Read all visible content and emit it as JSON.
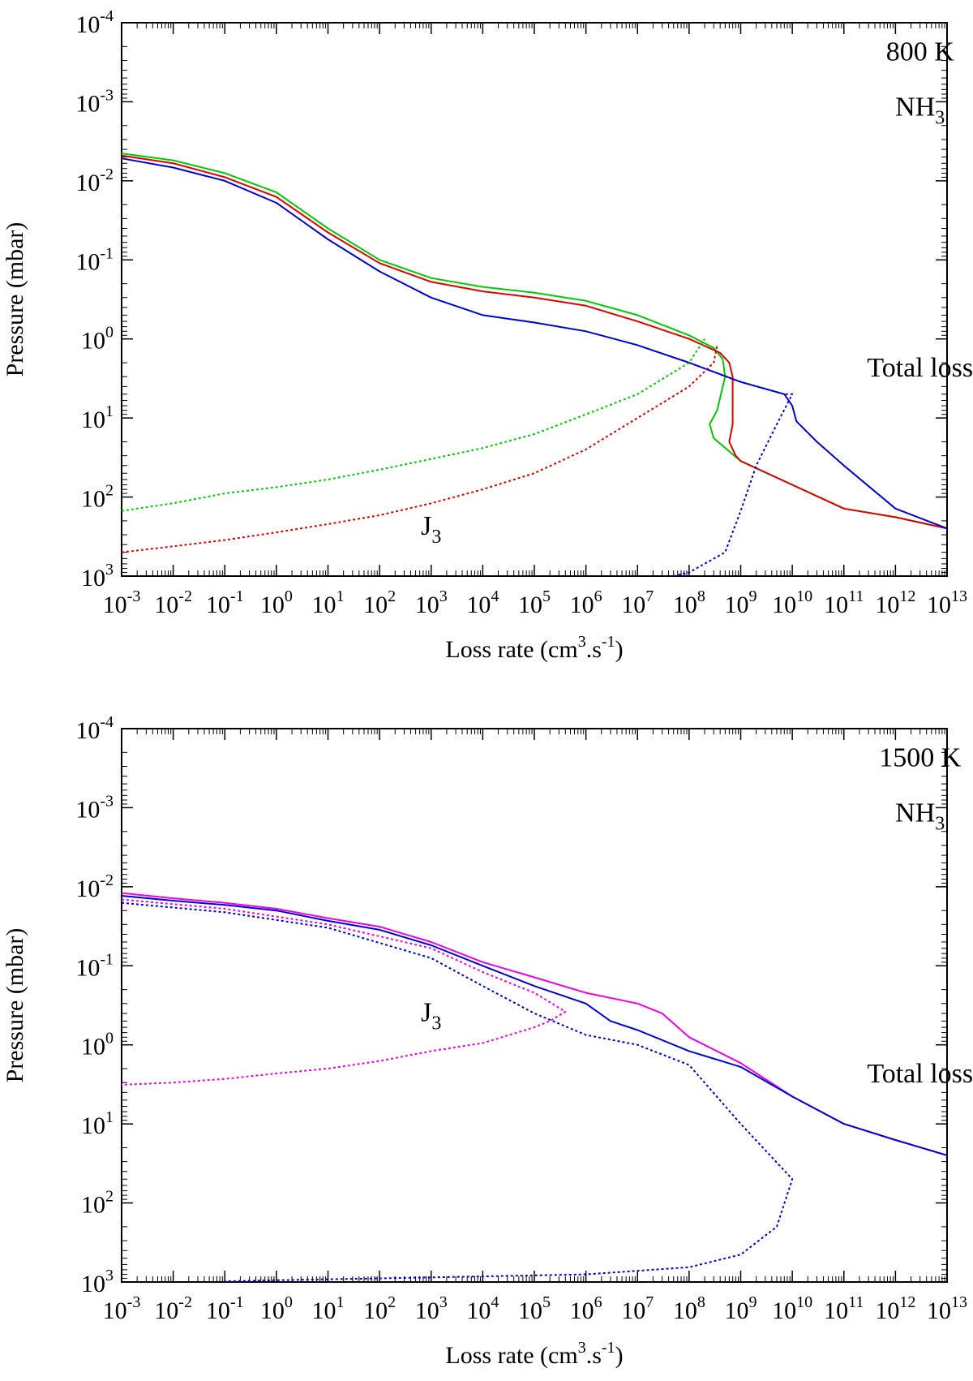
{
  "chart_data": [
    {
      "type": "line",
      "xscale": "log",
      "yscale": "log",
      "yaxis_inverted": true,
      "xlabel": "Loss rate (cm3.s-1)",
      "ylabel": "Pressure (mbar)",
      "xlim": [
        0.001,
        10000000000000.0
      ],
      "ylim": [
        0.0001,
        1000
      ],
      "x_tick_labels": [
        {
          "base": "10",
          "exp": "-3"
        },
        {
          "base": "10",
          "exp": "-2"
        },
        {
          "base": "10",
          "exp": "-1"
        },
        {
          "base": "10",
          "exp": "0"
        },
        {
          "base": "10",
          "exp": "1"
        },
        {
          "base": "10",
          "exp": "2"
        },
        {
          "base": "10",
          "exp": "3"
        },
        {
          "base": "10",
          "exp": "4"
        },
        {
          "base": "10",
          "exp": "5"
        },
        {
          "base": "10",
          "exp": "6"
        },
        {
          "base": "10",
          "exp": "7"
        },
        {
          "base": "10",
          "exp": "8"
        },
        {
          "base": "10",
          "exp": "9"
        },
        {
          "base": "10",
          "exp": "10"
        },
        {
          "base": "10",
          "exp": "11"
        },
        {
          "base": "10",
          "exp": "12"
        },
        {
          "base": "10",
          "exp": "13"
        }
      ],
      "y_tick_labels": [
        {
          "base": "10",
          "exp": "-4"
        },
        {
          "base": "10",
          "exp": "-3"
        },
        {
          "base": "10",
          "exp": "-2"
        },
        {
          "base": "10",
          "exp": "-1"
        },
        {
          "base": "10",
          "exp": "0"
        },
        {
          "base": "10",
          "exp": "1"
        },
        {
          "base": "10",
          "exp": "2"
        },
        {
          "base": "10",
          "exp": "3"
        }
      ],
      "annotations": [
        {
          "text": "800 K",
          "x": 3000000000000.0,
          "y": 0.0003
        },
        {
          "text": "NH",
          "sub": "3",
          "x": 3000000000000.0,
          "y": 0.0015
        },
        {
          "text": "Total loss",
          "x": 3000000000000.0,
          "y": 3
        },
        {
          "text": "J",
          "sub": "3",
          "x": 1000.0,
          "y": 300
        }
      ],
      "series": [
        {
          "color": "#00cc00",
          "style": "solid",
          "points": [
            [
              0.001,
              0.0045
            ],
            [
              0.01,
              0.0055
            ],
            [
              0.1,
              0.008
            ],
            [
              1,
              0.014
            ],
            [
              10,
              0.04
            ],
            [
              100,
              0.1
            ],
            [
              1000,
              0.17
            ],
            [
              10000,
              0.22
            ],
            [
              100000,
              0.26
            ],
            [
              1000000.0,
              0.33
            ],
            [
              10000000.0,
              0.5
            ],
            [
              100000000.0,
              0.9
            ],
            [
              300000000.0,
              1.3
            ],
            [
              450000000.0,
              1.8
            ],
            [
              500000000.0,
              3
            ],
            [
              350000000.0,
              8
            ],
            [
              250000000.0,
              12
            ],
            [
              300000000.0,
              18
            ],
            [
              1000000000.0,
              35
            ],
            [
              10000000000.0,
              70
            ],
            [
              100000000000.0,
              140
            ],
            [
              1000000000000.0,
              180
            ],
            [
              10000000000000.0,
              250
            ]
          ]
        },
        {
          "color": "#e00000",
          "style": "solid",
          "points": [
            [
              0.001,
              0.0048
            ],
            [
              0.01,
              0.006
            ],
            [
              0.1,
              0.009
            ],
            [
              1,
              0.016
            ],
            [
              10,
              0.045
            ],
            [
              100,
              0.11
            ],
            [
              1000,
              0.19
            ],
            [
              10000,
              0.25
            ],
            [
              100000,
              0.3
            ],
            [
              1000000.0,
              0.38
            ],
            [
              10000000.0,
              0.6
            ],
            [
              100000000.0,
              1
            ],
            [
              400000000.0,
              1.5
            ],
            [
              600000000.0,
              2
            ],
            [
              700000000.0,
              3
            ],
            [
              700000000.0,
              12
            ],
            [
              600000000.0,
              20
            ],
            [
              800000000.0,
              30
            ],
            [
              1000000000.0,
              35
            ],
            [
              10000000000.0,
              70
            ],
            [
              100000000000.0,
              140
            ],
            [
              1000000000000.0,
              180
            ],
            [
              10000000000000.0,
              250
            ]
          ]
        },
        {
          "color": "#0000dd",
          "style": "solid",
          "points": [
            [
              0.001,
              0.0052
            ],
            [
              0.01,
              0.0068
            ],
            [
              0.1,
              0.01
            ],
            [
              1,
              0.019
            ],
            [
              10,
              0.055
            ],
            [
              100,
              0.14
            ],
            [
              1000,
              0.3
            ],
            [
              10000,
              0.5
            ],
            [
              100000,
              0.62
            ],
            [
              1000000.0,
              0.8
            ],
            [
              10000000.0,
              1.2
            ],
            [
              100000000.0,
              2
            ],
            [
              1000000000.0,
              3.5
            ],
            [
              7000000000.0,
              5
            ],
            [
              10000000000.0,
              7
            ],
            [
              12000000000.0,
              11
            ],
            [
              30000000000.0,
              20
            ],
            [
              100000000000.0,
              40
            ],
            [
              1000000000000.0,
              140
            ],
            [
              10000000000000.0,
              250
            ]
          ]
        },
        {
          "color": "#00cc00",
          "style": "dotted",
          "points": [
            [
              0.001,
              150
            ],
            [
              0.01,
              120
            ],
            [
              0.1,
              90
            ],
            [
              1,
              75
            ],
            [
              10,
              60
            ],
            [
              100,
              45
            ],
            [
              1000,
              33
            ],
            [
              10000,
              24
            ],
            [
              100000,
              16
            ],
            [
              1000000.0,
              9
            ],
            [
              10000000.0,
              5
            ],
            [
              100000000.0,
              2
            ],
            [
              200000000.0,
              1
            ]
          ]
        },
        {
          "color": "#e00000",
          "style": "dotted",
          "points": [
            [
              0.001,
              500
            ],
            [
              0.01,
              420
            ],
            [
              0.1,
              350
            ],
            [
              1,
              280
            ],
            [
              10,
              220
            ],
            [
              100,
              170
            ],
            [
              1000,
              120
            ],
            [
              10000,
              80
            ],
            [
              100000,
              50
            ],
            [
              1000000.0,
              25
            ],
            [
              10000000.0,
              10
            ],
            [
              100000000.0,
              4
            ],
            [
              300000000.0,
              2
            ],
            [
              350000000.0,
              1.2
            ]
          ]
        },
        {
          "color": "#0000dd",
          "style": "dotted",
          "points": [
            [
              50000000.0,
              1000
            ],
            [
              100000000.0,
              900
            ],
            [
              500000000.0,
              500
            ],
            [
              1000000000.0,
              150
            ],
            [
              2000000000.0,
              40
            ],
            [
              5000000000.0,
              12
            ],
            [
              10000000000.0,
              5
            ],
            [
              7000000000.0,
              5
            ],
            [
              1000000000.0,
              3.5
            ],
            [
              100000000.0,
              2
            ]
          ]
        }
      ]
    },
    {
      "type": "line",
      "xscale": "log",
      "yscale": "log",
      "yaxis_inverted": true,
      "xlabel": "Loss rate (cm3.s-1)",
      "ylabel": "Pressure (mbar)",
      "xlim": [
        0.001,
        10000000000000.0
      ],
      "ylim": [
        0.0001,
        1000
      ],
      "x_tick_labels": [
        {
          "base": "10",
          "exp": "-3"
        },
        {
          "base": "10",
          "exp": "-2"
        },
        {
          "base": "10",
          "exp": "-1"
        },
        {
          "base": "10",
          "exp": "0"
        },
        {
          "base": "10",
          "exp": "1"
        },
        {
          "base": "10",
          "exp": "2"
        },
        {
          "base": "10",
          "exp": "3"
        },
        {
          "base": "10",
          "exp": "4"
        },
        {
          "base": "10",
          "exp": "5"
        },
        {
          "base": "10",
          "exp": "6"
        },
        {
          "base": "10",
          "exp": "7"
        },
        {
          "base": "10",
          "exp": "8"
        },
        {
          "base": "10",
          "exp": "9"
        },
        {
          "base": "10",
          "exp": "10"
        },
        {
          "base": "10",
          "exp": "11"
        },
        {
          "base": "10",
          "exp": "12"
        },
        {
          "base": "10",
          "exp": "13"
        }
      ],
      "y_tick_labels": [
        {
          "base": "10",
          "exp": "-4"
        },
        {
          "base": "10",
          "exp": "-3"
        },
        {
          "base": "10",
          "exp": "-2"
        },
        {
          "base": "10",
          "exp": "-1"
        },
        {
          "base": "10",
          "exp": "0"
        },
        {
          "base": "10",
          "exp": "1"
        },
        {
          "base": "10",
          "exp": "2"
        },
        {
          "base": "10",
          "exp": "3"
        }
      ],
      "annotations": [
        {
          "text": "1500 K",
          "x": 3000000000000.0,
          "y": 0.0003
        },
        {
          "text": "NH",
          "sub": "3",
          "x": 3000000000000.0,
          "y": 0.0015
        },
        {
          "text": "Total loss",
          "x": 3000000000000.0,
          "y": 3
        },
        {
          "text": "J",
          "sub": "3",
          "x": 1000.0,
          "y": 0.5
        }
      ],
      "series": [
        {
          "color": "#ee00ee",
          "style": "solid",
          "points": [
            [
              0.001,
              0.012
            ],
            [
              0.01,
              0.014
            ],
            [
              0.1,
              0.016
            ],
            [
              1,
              0.019
            ],
            [
              10,
              0.025
            ],
            [
              100,
              0.032
            ],
            [
              1000,
              0.05
            ],
            [
              10000,
              0.09
            ],
            [
              100000,
              0.14
            ],
            [
              1000000.0,
              0.22
            ],
            [
              10000000.0,
              0.3
            ],
            [
              30000000.0,
              0.4
            ],
            [
              100000000.0,
              0.8
            ],
            [
              1000000000.0,
              1.7
            ],
            [
              10000000000.0,
              4.5
            ],
            [
              100000000000.0,
              10
            ],
            [
              1000000000000.0,
              16
            ],
            [
              10000000000000.0,
              25
            ]
          ]
        },
        {
          "color": "#0000dd",
          "style": "solid",
          "points": [
            [
              0.001,
              0.013
            ],
            [
              0.01,
              0.015
            ],
            [
              0.1,
              0.017
            ],
            [
              1,
              0.02
            ],
            [
              10,
              0.027
            ],
            [
              100,
              0.035
            ],
            [
              1000,
              0.055
            ],
            [
              10000,
              0.1
            ],
            [
              100000,
              0.18
            ],
            [
              1000000.0,
              0.3
            ],
            [
              3000000.0,
              0.5
            ],
            [
              10000000.0,
              0.65
            ],
            [
              100000000.0,
              1.2
            ],
            [
              1000000000.0,
              1.9
            ],
            [
              10000000000.0,
              4.5
            ],
            [
              100000000000.0,
              10
            ],
            [
              1000000000000.0,
              16
            ],
            [
              10000000000000.0,
              25
            ]
          ]
        },
        {
          "color": "#ee00ee",
          "style": "dotted",
          "points": [
            [
              0.001,
              0.0145
            ],
            [
              0.1,
              0.019
            ],
            [
              10,
              0.03
            ],
            [
              1000,
              0.06
            ],
            [
              10000,
              0.12
            ],
            [
              100000,
              0.22
            ],
            [
              400000.0,
              0.38
            ],
            [
              200000.0,
              0.5
            ],
            [
              100000.0,
              0.6
            ],
            [
              10000.0,
              0.95
            ],
            [
              1000,
              1.2
            ],
            [
              100,
              1.6
            ],
            [
              10,
              2
            ],
            [
              1,
              2.3
            ],
            [
              0.1,
              2.7
            ],
            [
              0.01,
              3
            ],
            [
              0.001,
              3.2
            ]
          ]
        },
        {
          "color": "#0000dd",
          "style": "dotted",
          "points": [
            [
              0.001,
              0.016
            ],
            [
              0.1,
              0.021
            ],
            [
              10,
              0.033
            ],
            [
              1000,
              0.08
            ],
            [
              10000,
              0.18
            ],
            [
              100000,
              0.4
            ],
            [
              1000000.0,
              0.75
            ],
            [
              10000000.0,
              1
            ],
            [
              100000000.0,
              1.8
            ],
            [
              1000000000.0,
              10
            ],
            [
              10000000000.0,
              50
            ],
            [
              5000000000.0,
              200
            ],
            [
              1000000000.0,
              450
            ],
            [
              100000000.0,
              650
            ],
            [
              1000000.0,
              800
            ],
            [
              10000.0,
              850
            ],
            [
              100,
              900
            ],
            [
              1,
              950
            ],
            [
              0.1,
              980
            ]
          ]
        }
      ]
    }
  ]
}
